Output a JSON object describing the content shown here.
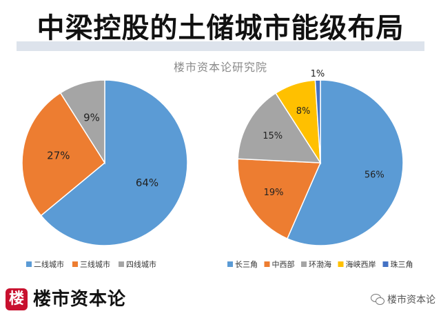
{
  "title": "中梁控股的土储城市能级布局",
  "subtitle": "楼市资本论研究院",
  "footer": {
    "logo_char": "楼",
    "brand": "楼市资本论",
    "wechat": "楼市资本论"
  },
  "chart_data": [
    {
      "type": "pie",
      "categories": [
        "二线城市",
        "三线城市",
        "四线城市"
      ],
      "values": [
        64,
        27,
        9
      ],
      "labels": [
        "64%",
        "27%",
        "9%"
      ],
      "colors": [
        "#5b9bd5",
        "#ed7d31",
        "#a5a5a5"
      ],
      "legend": "bottom"
    },
    {
      "type": "pie",
      "categories": [
        "长三角",
        "中西部",
        "环渤海",
        "海峡西岸",
        "珠三角"
      ],
      "values": [
        56,
        19,
        15,
        8,
        1
      ],
      "labels": [
        "56%",
        "19%",
        "15%",
        "8%",
        "1%"
      ],
      "colors": [
        "#5b9bd5",
        "#ed7d31",
        "#a5a5a5",
        "#ffc000",
        "#4472c4"
      ],
      "legend": "bottom"
    }
  ]
}
